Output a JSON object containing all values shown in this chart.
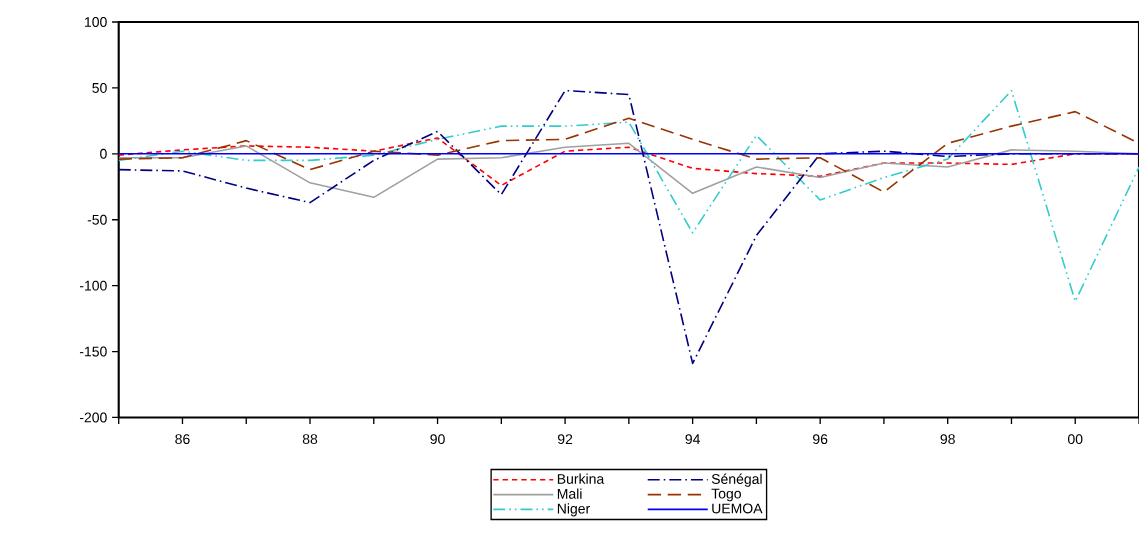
{
  "chart_data": {
    "type": "line",
    "x": [
      1985,
      1986,
      1987,
      1988,
      1989,
      1990,
      1991,
      1992,
      1993,
      1994,
      1995,
      1996,
      1997,
      1998,
      1999,
      2000,
      2001
    ],
    "series": [
      {
        "name": "Burkina",
        "color": "#ff0000",
        "line_style": "dashed",
        "values": [
          -1,
          3,
          6,
          5,
          2,
          12,
          -24,
          2,
          5,
          -11,
          -15,
          -17,
          -7,
          -7,
          -8,
          0,
          0
        ]
      },
      {
        "name": "Mali",
        "color": "#a0a0a0",
        "line_style": "solid",
        "values": [
          -3,
          -3,
          6,
          -22,
          -33,
          -4,
          -3,
          5,
          8,
          -30,
          -10,
          -18,
          -7,
          -10,
          3,
          2,
          0
        ]
      },
      {
        "name": "Niger",
        "color": "#33cccc",
        "line_style": "dashdotdot",
        "values": [
          -5,
          2,
          -5,
          -5,
          -1,
          11,
          21,
          21,
          24,
          -60,
          14,
          -35,
          -18,
          -4,
          48,
          -112,
          -10
        ]
      },
      {
        "name": "Sénégal",
        "color": "#000080",
        "line_style": "dashdot",
        "values": [
          -12,
          -13,
          -26,
          -37,
          -5,
          17,
          -31,
          48,
          45,
          -159,
          -62,
          0,
          2,
          -2,
          0,
          0,
          0
        ]
      },
      {
        "name": "Togo",
        "color": "#993300",
        "line_style": "longdashed",
        "values": [
          -4,
          -3,
          10,
          -12,
          2,
          -1,
          10,
          11,
          27,
          11,
          -4,
          -3,
          -29,
          8,
          21,
          32,
          8
        ]
      },
      {
        "name": "UEMOA",
        "color": "#0000ff",
        "line_style": "solid",
        "values": [
          0,
          0,
          0,
          0,
          0,
          0,
          0,
          0,
          0,
          0,
          0,
          0,
          0,
          0,
          0,
          0,
          0
        ]
      }
    ],
    "xlim": [
      1985,
      2001
    ],
    "xticks": [
      {
        "value": 1985,
        "label": null
      },
      {
        "value": 1986,
        "label": "86"
      },
      {
        "value": 1987,
        "label": null
      },
      {
        "value": 1988,
        "label": "88"
      },
      {
        "value": 1989,
        "label": null
      },
      {
        "value": 1990,
        "label": "90"
      },
      {
        "value": 1991,
        "label": null
      },
      {
        "value": 1992,
        "label": "92"
      },
      {
        "value": 1993,
        "label": null
      },
      {
        "value": 1994,
        "label": "94"
      },
      {
        "value": 1995,
        "label": null
      },
      {
        "value": 1996,
        "label": "96"
      },
      {
        "value": 1997,
        "label": null
      },
      {
        "value": 1998,
        "label": "98"
      },
      {
        "value": 1999,
        "label": null
      },
      {
        "value": 2000,
        "label": "00"
      },
      {
        "value": 2001,
        "label": null
      }
    ],
    "ylim": [
      -200,
      100
    ],
    "yticks": [
      -200,
      -150,
      -100,
      -50,
      0,
      50,
      100
    ],
    "grid": false,
    "legend": "bottom",
    "marker": "none"
  }
}
